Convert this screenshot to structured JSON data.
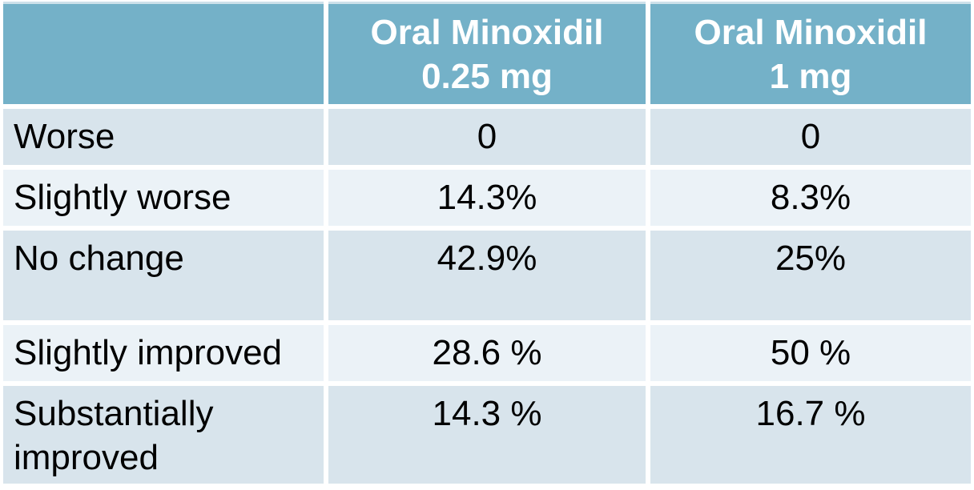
{
  "colors": {
    "header_bg": "#74B1C8",
    "header_text": "#FFFFFF",
    "header_top_border": "#CEE1EA",
    "row_dark_bg": "#D8E4EC",
    "row_light_bg": "#EBF2F7",
    "body_text": "#000000",
    "grid_gap": "#FFFFFF"
  },
  "table": {
    "columns": [
      {
        "line1": "",
        "line2": ""
      },
      {
        "line1": "Oral Minoxidil",
        "line2": "0.25 mg"
      },
      {
        "line1": "Oral Minoxidil",
        "line2": "1 mg"
      }
    ],
    "rows": [
      {
        "label": "Worse",
        "values": [
          "0",
          "0"
        ]
      },
      {
        "label": "Slightly worse",
        "values": [
          "14.3%",
          "8.3%"
        ]
      },
      {
        "label": "No change",
        "values": [
          "42.9%",
          "25%"
        ]
      },
      {
        "label": "Slightly improved",
        "values": [
          "28.6 %",
          "50 %"
        ]
      },
      {
        "label": "Substantially improved",
        "values": [
          "14.3 %",
          "16.7 %"
        ]
      }
    ]
  },
  "chart_data": {
    "type": "table",
    "columns": [
      "",
      "Oral Minoxidil 0.25 mg",
      "Oral Minoxidil 1 mg"
    ],
    "categories": [
      "Worse",
      "Slightly worse",
      "No change",
      "Slightly improved",
      "Substantially improved"
    ],
    "series": [
      {
        "name": "Oral Minoxidil 0.25 mg",
        "values": [
          0,
          14.3,
          42.9,
          28.6,
          14.3
        ]
      },
      {
        "name": "Oral Minoxidil 1 mg",
        "values": [
          0,
          8.3,
          25,
          50,
          16.7
        ]
      }
    ],
    "unit": "%",
    "rows": [
      [
        "Worse",
        "0",
        "0"
      ],
      [
        "Slightly worse",
        "14.3%",
        "8.3%"
      ],
      [
        "No change",
        "42.9%",
        "25%"
      ],
      [
        "Slightly improved",
        "28.6 %",
        "50 %"
      ],
      [
        "Substantially improved",
        "14.3 %",
        "16.7 %"
      ]
    ]
  }
}
